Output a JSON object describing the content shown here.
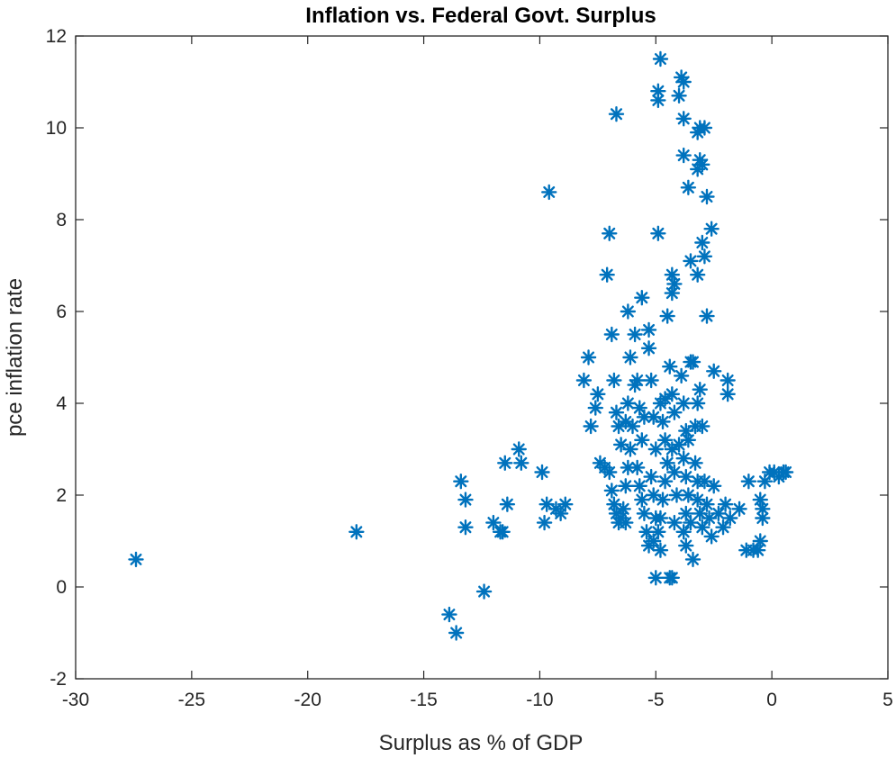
{
  "chart_data": {
    "type": "scatter",
    "title": "Inflation vs. Federal Govt. Surplus",
    "xlabel": "Surplus as % of GDP",
    "ylabel": "pce inflation rate",
    "xlim": [
      -30,
      5
    ],
    "ylim": [
      -2,
      12
    ],
    "xticks": [
      -30,
      -25,
      -20,
      -15,
      -10,
      -5,
      0,
      5
    ],
    "yticks": [
      -2,
      0,
      2,
      4,
      6,
      8,
      10,
      12
    ],
    "marker": "asterisk",
    "grid": false,
    "series": [
      {
        "color": "#0072BD",
        "points": [
          [
            -27.4,
            0.6
          ],
          [
            -17.9,
            1.2
          ],
          [
            -13.9,
            -0.6
          ],
          [
            -13.6,
            -1.0
          ],
          [
            -12.4,
            -0.1
          ],
          [
            -13.4,
            2.3
          ],
          [
            -13.2,
            1.9
          ],
          [
            -13.2,
            1.3
          ],
          [
            -12.0,
            1.4
          ],
          [
            -11.7,
            1.2
          ],
          [
            -11.6,
            1.2
          ],
          [
            -11.4,
            1.8
          ],
          [
            -11.5,
            2.7
          ],
          [
            -10.9,
            3.0
          ],
          [
            -10.8,
            2.7
          ],
          [
            -9.9,
            2.5
          ],
          [
            -9.8,
            1.4
          ],
          [
            -9.7,
            1.8
          ],
          [
            -9.3,
            1.7
          ],
          [
            -9.1,
            1.6
          ],
          [
            -8.9,
            1.8
          ],
          [
            -9.6,
            8.6
          ],
          [
            -8.1,
            4.5
          ],
          [
            -7.9,
            5.0
          ],
          [
            -7.8,
            3.5
          ],
          [
            -7.6,
            3.9
          ],
          [
            -7.5,
            4.2
          ],
          [
            -7.4,
            2.7
          ],
          [
            -7.2,
            2.6
          ],
          [
            -7.1,
            6.8
          ],
          [
            -7.0,
            7.7
          ],
          [
            -6.9,
            5.5
          ],
          [
            -6.8,
            4.5
          ],
          [
            -6.7,
            3.8
          ],
          [
            -6.6,
            3.5
          ],
          [
            -6.5,
            3.1
          ],
          [
            -6.7,
            10.3
          ],
          [
            -7.0,
            2.5
          ],
          [
            -6.9,
            2.1
          ],
          [
            -6.8,
            1.8
          ],
          [
            -6.7,
            1.6
          ],
          [
            -6.6,
            1.4
          ],
          [
            -6.5,
            1.5
          ],
          [
            -6.4,
            1.7
          ],
          [
            -6.3,
            2.2
          ],
          [
            -6.2,
            2.6
          ],
          [
            -6.1,
            3.0
          ],
          [
            -6.3,
            3.6
          ],
          [
            -6.2,
            4.0
          ],
          [
            -6.2,
            6.0
          ],
          [
            -6.1,
            5.0
          ],
          [
            -6.0,
            3.5
          ],
          [
            -5.9,
            5.5
          ],
          [
            -5.8,
            4.5
          ],
          [
            -5.7,
            3.9
          ],
          [
            -5.6,
            3.2
          ],
          [
            -5.8,
            2.6
          ],
          [
            -5.7,
            2.2
          ],
          [
            -5.6,
            1.9
          ],
          [
            -5.5,
            1.6
          ],
          [
            -5.4,
            1.2
          ],
          [
            -5.3,
            0.9
          ],
          [
            -5.6,
            6.3
          ],
          [
            -5.3,
            5.6
          ],
          [
            -5.3,
            5.2
          ],
          [
            -5.2,
            4.5
          ],
          [
            -5.1,
            3.7
          ],
          [
            -5.0,
            3.0
          ],
          [
            -5.2,
            2.4
          ],
          [
            -5.1,
            2.0
          ],
          [
            -5.0,
            1.5
          ],
          [
            -5.1,
            1.0
          ],
          [
            -5.0,
            0.2
          ],
          [
            -4.9,
            10.8
          ],
          [
            -4.9,
            10.6
          ],
          [
            -4.8,
            11.5
          ],
          [
            -4.9,
            7.7
          ],
          [
            -4.8,
            4.0
          ],
          [
            -4.7,
            3.6
          ],
          [
            -4.6,
            3.2
          ],
          [
            -4.5,
            2.7
          ],
          [
            -4.6,
            2.3
          ],
          [
            -4.7,
            1.9
          ],
          [
            -4.8,
            1.5
          ],
          [
            -4.9,
            1.2
          ],
          [
            -4.8,
            0.8
          ],
          [
            -4.5,
            5.9
          ],
          [
            -4.4,
            4.8
          ],
          [
            -4.3,
            4.2
          ],
          [
            -4.2,
            3.8
          ],
          [
            -4.3,
            3.0
          ],
          [
            -4.2,
            2.5
          ],
          [
            -4.1,
            2.0
          ],
          [
            -4.2,
            1.4
          ],
          [
            -4.3,
            0.2
          ],
          [
            -4.4,
            0.2
          ],
          [
            -4.3,
            6.8
          ],
          [
            -4.2,
            6.6
          ],
          [
            -4.3,
            6.4
          ],
          [
            -4.0,
            10.7
          ],
          [
            -3.9,
            11.1
          ],
          [
            -3.8,
            11.0
          ],
          [
            -3.8,
            10.2
          ],
          [
            -3.8,
            9.4
          ],
          [
            -3.6,
            8.7
          ],
          [
            -3.5,
            7.1
          ],
          [
            -3.9,
            4.6
          ],
          [
            -3.8,
            4.0
          ],
          [
            -3.7,
            3.4
          ],
          [
            -3.6,
            3.2
          ],
          [
            -3.8,
            2.8
          ],
          [
            -3.7,
            2.4
          ],
          [
            -3.6,
            2.0
          ],
          [
            -3.7,
            1.6
          ],
          [
            -3.8,
            1.2
          ],
          [
            -3.7,
            0.9
          ],
          [
            -3.4,
            0.6
          ],
          [
            -3.5,
            4.9
          ],
          [
            -3.4,
            4.9
          ],
          [
            -3.3,
            2.7
          ],
          [
            -3.2,
            2.3
          ],
          [
            -3.2,
            1.9
          ],
          [
            -3.1,
            1.6
          ],
          [
            -3.0,
            1.3
          ],
          [
            -3.1,
            10.0
          ],
          [
            -2.9,
            10.0
          ],
          [
            -3.2,
            9.9
          ],
          [
            -3.1,
            9.3
          ],
          [
            -3.0,
            9.2
          ],
          [
            -3.2,
            9.1
          ],
          [
            -2.8,
            8.5
          ],
          [
            -2.6,
            7.8
          ],
          [
            -3.0,
            7.5
          ],
          [
            -2.9,
            7.2
          ],
          [
            -3.2,
            6.8
          ],
          [
            -2.8,
            5.9
          ],
          [
            -3.1,
            4.3
          ],
          [
            -3.2,
            4.0
          ],
          [
            -3.0,
            3.5
          ],
          [
            -2.9,
            2.3
          ],
          [
            -2.8,
            1.8
          ],
          [
            -2.7,
            1.5
          ],
          [
            -2.6,
            1.1
          ],
          [
            -2.5,
            4.7
          ],
          [
            -2.5,
            2.2
          ],
          [
            -2.3,
            1.6
          ],
          [
            -2.1,
            1.3
          ],
          [
            -2.0,
            1.8
          ],
          [
            -1.9,
            4.5
          ],
          [
            -1.9,
            4.2
          ],
          [
            -1.8,
            1.5
          ],
          [
            -1.4,
            1.7
          ],
          [
            -1.1,
            0.8
          ],
          [
            -1.0,
            2.3
          ],
          [
            -0.8,
            0.8
          ],
          [
            -0.6,
            0.8
          ],
          [
            -0.5,
            1.0
          ],
          [
            -0.5,
            1.9
          ],
          [
            -0.4,
            1.7
          ],
          [
            -0.4,
            1.5
          ],
          [
            -0.3,
            2.3
          ],
          [
            -0.1,
            2.5
          ],
          [
            0.1,
            2.5
          ],
          [
            0.3,
            2.4
          ],
          [
            0.5,
            2.5
          ],
          [
            0.6,
            2.5
          ],
          [
            -6.3,
            1.4
          ],
          [
            -5.9,
            4.4
          ],
          [
            -5.5,
            3.7
          ],
          [
            -4.6,
            4.1
          ],
          [
            -4.0,
            3.1
          ],
          [
            -3.5,
            1.4
          ],
          [
            -3.3,
            3.5
          ]
        ]
      }
    ]
  }
}
